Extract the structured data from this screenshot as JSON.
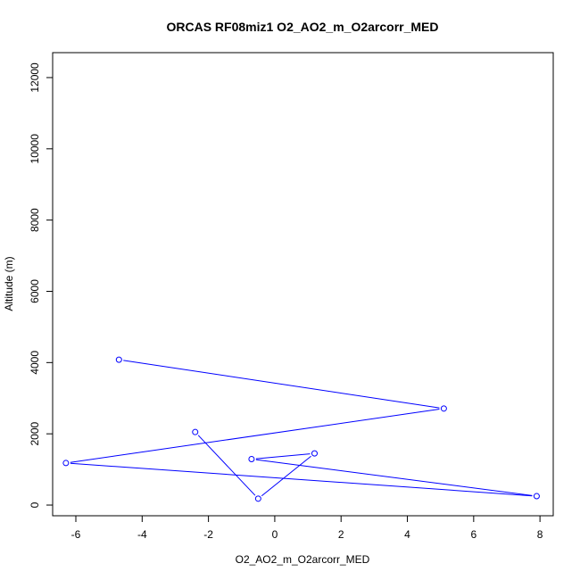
{
  "chart_data": {
    "type": "line",
    "title": "ORCAS RF08miz1 O2_AO2_m_O2arcorr_MED",
    "xlabel": "O2_AO2_m_O2arcorr_MED",
    "ylabel": "Altitude (m)",
    "xlim": [
      -6.7,
      8.4
    ],
    "ylim": [
      -300,
      12700
    ],
    "x_ticks": [
      -6,
      -4,
      -2,
      0,
      2,
      4,
      6,
      8
    ],
    "y_ticks": [
      0,
      2000,
      4000,
      6000,
      8000,
      10000,
      12000
    ],
    "grid": false,
    "series": [
      {
        "color": "#0000ff",
        "marker": "open-circle",
        "points": [
          {
            "x": -4.7,
            "y": 4080
          },
          {
            "x": 5.1,
            "y": 2710
          },
          {
            "x": -6.3,
            "y": 1180
          },
          {
            "x": 7.9,
            "y": 250
          },
          {
            "x": -0.7,
            "y": 1290
          },
          {
            "x": 1.2,
            "y": 1450
          },
          {
            "x": -0.5,
            "y": 180
          },
          {
            "x": -2.4,
            "y": 2050
          }
        ]
      }
    ]
  }
}
